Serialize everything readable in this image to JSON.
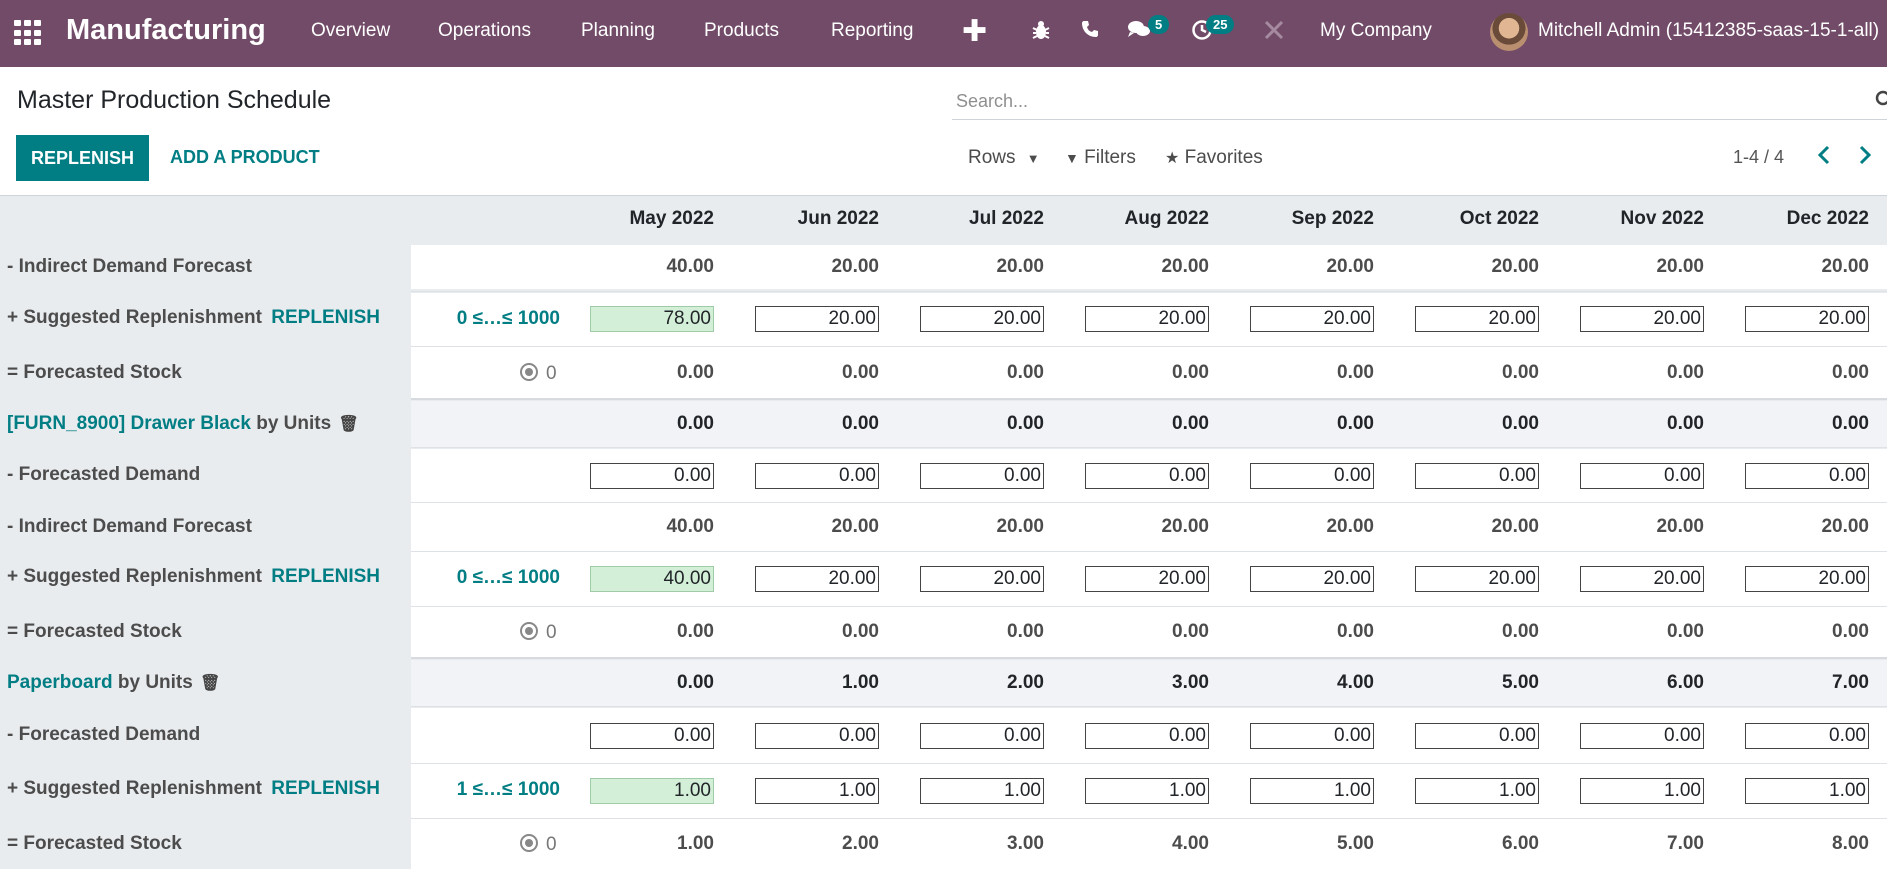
{
  "navbar": {
    "app_name": "Manufacturing",
    "menu": [
      "Overview",
      "Operations",
      "Planning",
      "Products",
      "Reporting"
    ],
    "plus": "✚",
    "chat_badge": "5",
    "activity_badge": "25",
    "company": "My Company",
    "user": "Mitchell Admin (15412385-saas-15-1-all)"
  },
  "control": {
    "title": "Master Production Schedule",
    "search_placeholder": "Search...",
    "replenish_button": "REPLENISH",
    "add_product_button": "ADD A PRODUCT",
    "rows_label": "Rows",
    "filters_label": "Filters",
    "favorites_label": "Favorites",
    "pager": "1-4 / 4"
  },
  "months": [
    "May 2022",
    "Jun 2022",
    "Jul 2022",
    "Aug 2022",
    "Sep 2022",
    "Oct 2022",
    "Nov 2022",
    "Dec 2022"
  ],
  "rows": {
    "r1": {
      "label": "- Indirect Demand Forecast",
      "values": [
        "40.00",
        "20.00",
        "20.00",
        "20.00",
        "20.00",
        "20.00",
        "20.00",
        "20.00"
      ]
    },
    "r2": {
      "label": "+ Suggested Replenishment",
      "replenish": "REPLENISH",
      "range": "0 ≤…≤ 1000",
      "values": [
        "78.00",
        "20.00",
        "20.00",
        "20.00",
        "20.00",
        "20.00",
        "20.00",
        "20.00"
      ]
    },
    "r3": {
      "label": "= Forecasted Stock",
      "safety": "0",
      "values": [
        "0.00",
        "0.00",
        "0.00",
        "0.00",
        "0.00",
        "0.00",
        "0.00",
        "0.00"
      ]
    },
    "p1": {
      "name": "[FURN_8900] Drawer Black",
      "uom": "by Units",
      "values": [
        "0.00",
        "0.00",
        "0.00",
        "0.00",
        "0.00",
        "0.00",
        "0.00",
        "0.00"
      ]
    },
    "r5": {
      "label": "- Forecasted Demand",
      "values": [
        "0.00",
        "0.00",
        "0.00",
        "0.00",
        "0.00",
        "0.00",
        "0.00",
        "0.00"
      ]
    },
    "r6": {
      "label": "- Indirect Demand Forecast",
      "values": [
        "40.00",
        "20.00",
        "20.00",
        "20.00",
        "20.00",
        "20.00",
        "20.00",
        "20.00"
      ]
    },
    "r7": {
      "label": "+ Suggested Replenishment",
      "replenish": "REPLENISH",
      "range": "0 ≤…≤ 1000",
      "values": [
        "40.00",
        "20.00",
        "20.00",
        "20.00",
        "20.00",
        "20.00",
        "20.00",
        "20.00"
      ]
    },
    "r8": {
      "label": "= Forecasted Stock",
      "safety": "0",
      "values": [
        "0.00",
        "0.00",
        "0.00",
        "0.00",
        "0.00",
        "0.00",
        "0.00",
        "0.00"
      ]
    },
    "p2": {
      "name": "Paperboard",
      "uom": "by Units",
      "values": [
        "0.00",
        "1.00",
        "2.00",
        "3.00",
        "4.00",
        "5.00",
        "6.00",
        "7.00"
      ]
    },
    "r10": {
      "label": "- Forecasted Demand",
      "values": [
        "0.00",
        "0.00",
        "0.00",
        "0.00",
        "0.00",
        "0.00",
        "0.00",
        "0.00"
      ]
    },
    "r11": {
      "label": "+ Suggested Replenishment",
      "replenish": "REPLENISH",
      "range": "1 ≤…≤ 1000",
      "values": [
        "1.00",
        "1.00",
        "1.00",
        "1.00",
        "1.00",
        "1.00",
        "1.00",
        "1.00"
      ]
    },
    "r12": {
      "label": "= Forecasted Stock",
      "safety": "0",
      "values": [
        "1.00",
        "2.00",
        "3.00",
        "4.00",
        "5.00",
        "6.00",
        "7.00",
        "8.00"
      ]
    }
  }
}
